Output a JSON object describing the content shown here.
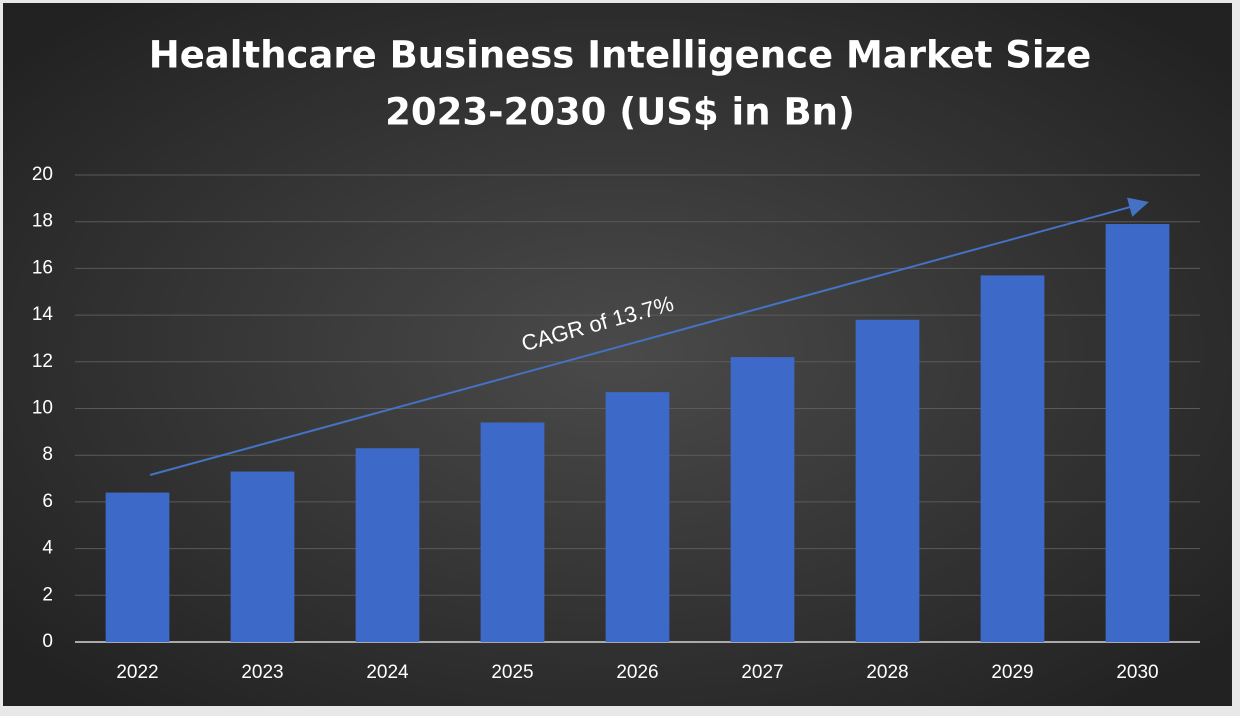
{
  "chart_data": {
    "type": "bar",
    "title": [
      "Healthcare Business Intelligence Market Size",
      "2023-2030 (US$ in Bn)"
    ],
    "annotation": "CAGR of 13.7%",
    "categories": [
      "2022",
      "2023",
      "2024",
      "2025",
      "2026",
      "2027",
      "2028",
      "2029",
      "2030"
    ],
    "values": [
      6.4,
      7.3,
      8.3,
      9.4,
      10.7,
      12.2,
      13.8,
      15.7,
      17.9
    ],
    "color": "#3d69c8",
    "ylim": [
      0,
      20
    ],
    "yticks": [
      0,
      2,
      4,
      6,
      8,
      10,
      12,
      14,
      16,
      18,
      20
    ],
    "grid": true
  }
}
